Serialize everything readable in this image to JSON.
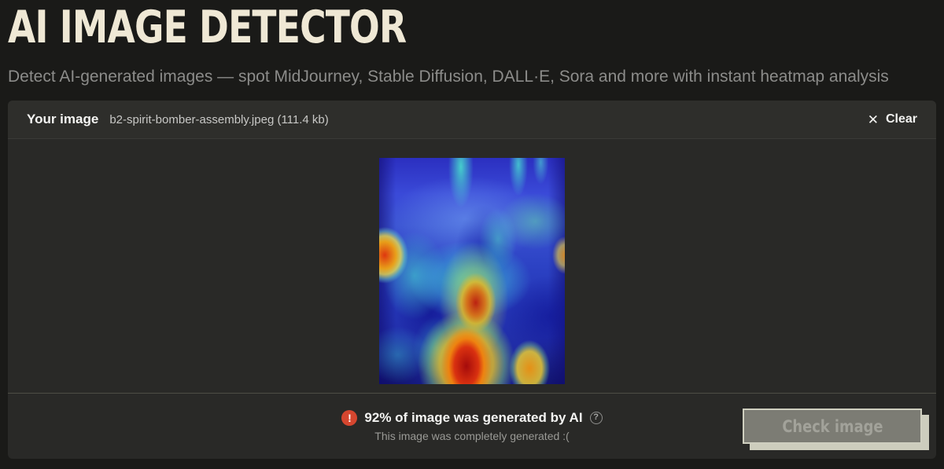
{
  "header": {
    "title": "AI IMAGE DETECTOR",
    "subtitle": "Detect AI-generated images — spot MidJourney, Stable Diffusion, DALL·E, Sora and more with instant heatmap analysis"
  },
  "panel": {
    "your_image_label": "Your image",
    "filename": "b2-spirit-bomber-assembly.jpeg (111.4 kb)",
    "clear": {
      "icon": "✕",
      "label": "Clear"
    }
  },
  "result": {
    "warning_icon": "!",
    "headline": "92% of image was generated by AI",
    "help_icon": "?",
    "subtext": "This image was completely generated :("
  },
  "actions": {
    "check_button_label": "Check image"
  },
  "colors": {
    "accent_red": "#d5462f",
    "title_cream": "#efe8d5",
    "button_face": "#7c7c74",
    "button_shadow": "#cdcdbd",
    "panel_bg": "#292927",
    "page_bg": "#1a1a18"
  }
}
